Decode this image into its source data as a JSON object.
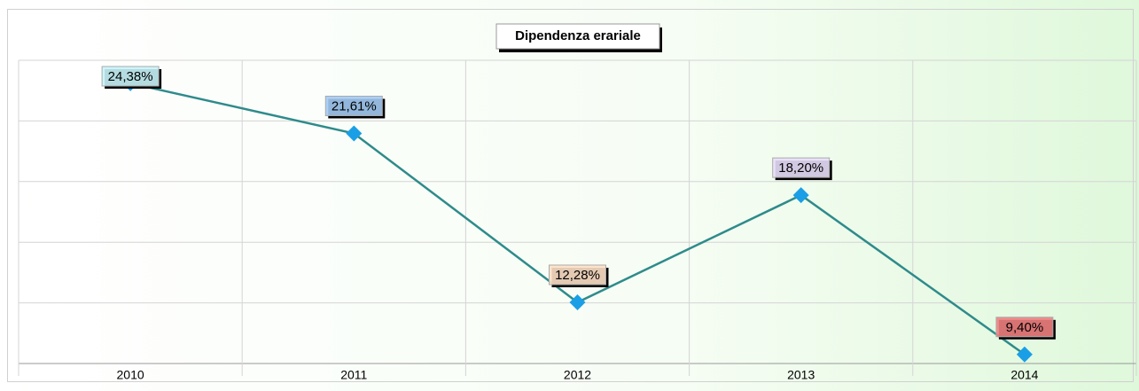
{
  "chart_data": {
    "type": "line",
    "title": "Dipendenza erariale",
    "categories": [
      "2010",
      "2011",
      "2012",
      "2013",
      "2014"
    ],
    "series": [
      {
        "color": "#2e8b8b",
        "marker_color": "#1a9fe6",
        "values": [
          24.38,
          21.61,
          12.28,
          18.2,
          9.4
        ],
        "value_labels": [
          "24,38%",
          "21,61%",
          "12,28%",
          "18,20%",
          "9,40%"
        ],
        "label_colors": [
          "#c8f4f8",
          "#a3cbf4",
          "#fde0c6",
          "#e8defa",
          "#f08080"
        ]
      }
    ],
    "ylim": [
      8.9,
      25.65
    ],
    "yticks": [
      8.9,
      12.25,
      15.6,
      18.95,
      22.3,
      25.65
    ],
    "grid": true
  }
}
